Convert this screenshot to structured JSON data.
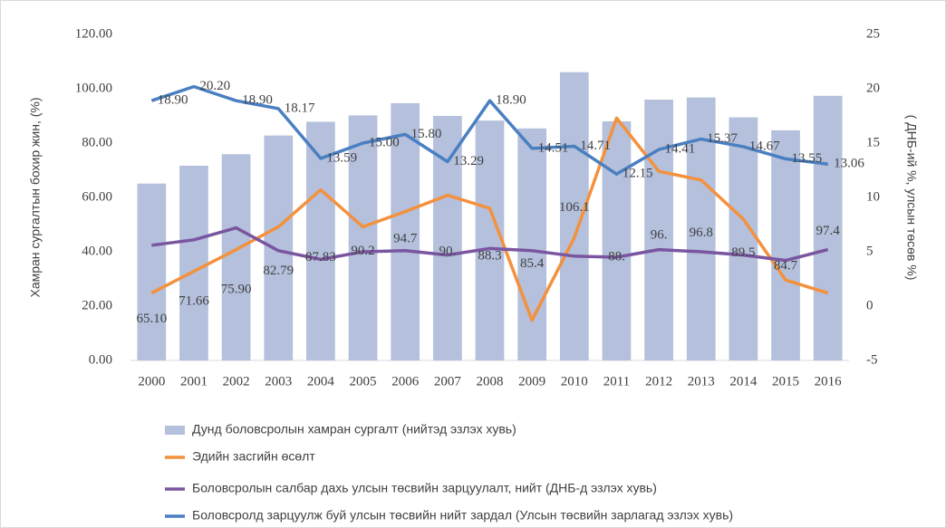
{
  "chart_data": {
    "type": "bar_line",
    "categories": [
      "2000",
      "2001",
      "2002",
      "2003",
      "2004",
      "2005",
      "2006",
      "2007",
      "2008",
      "2009",
      "2010",
      "2011",
      "2012",
      "2013",
      "2014",
      "2015",
      "2016"
    ],
    "y_label": "Хамран сургалтын бохир жин, (%)",
    "y2_label": "( ДНБ-ий %,  улсын төсөв %)",
    "ylim": [
      0,
      120
    ],
    "yticks": [
      {
        "value": 0,
        "label": "0.00"
      },
      {
        "value": 20,
        "label": "20.00"
      },
      {
        "value": 40,
        "label": "40.00"
      },
      {
        "value": 60,
        "label": "60.00"
      },
      {
        "value": 80,
        "label": "80.00"
      },
      {
        "value": 100,
        "label": "100.00"
      },
      {
        "value": 120,
        "label": "120.00"
      }
    ],
    "y2lim": [
      -5,
      25
    ],
    "y2ticks": [
      -5,
      0,
      5,
      10,
      15,
      20,
      25
    ],
    "series": [
      {
        "name": "Дунд боловсролын хамран сургалт (нийтэд эзлэх хувь)",
        "kind": "bar",
        "color": "#b4c0dc",
        "values": [
          65.1,
          71.66,
          75.9,
          82.79,
          87.83,
          90.2,
          94.7,
          90,
          88.3,
          85.4,
          106.1,
          88,
          96,
          96.8,
          89.5,
          84.7,
          97.4
        ],
        "value_labels": [
          "65.10",
          "71.66",
          "75.90",
          "82.79",
          "87.83",
          "90.2",
          "94.7",
          "90.",
          "88.3",
          "85.4",
          "106.1",
          "88.",
          "96.",
          "96.8",
          "89.5",
          "84.7",
          "97.4"
        ]
      },
      {
        "name": "Эдийн засгийн өсөлт",
        "kind": "line",
        "axis": "y2",
        "color": "#f4913d",
        "values": [
          1.2,
          3.2,
          5.2,
          7.3,
          10.7,
          7.3,
          8.7,
          10.2,
          9.0,
          -1.3,
          6.3,
          17.3,
          12.4,
          11.6,
          8.0,
          2.4,
          1.2
        ]
      },
      {
        "name": "Боловсролын салбар дахь улсын төсвийн зарцуулалт, нийт (ДНБ-д эзлэх хувь)",
        "kind": "line",
        "axis": "y2",
        "color": "#7a55a0",
        "values": [
          5.6,
          6.1,
          7.2,
          5.1,
          4.3,
          5.0,
          5.1,
          4.7,
          5.3,
          5.1,
          4.6,
          4.5,
          5.2,
          5.0,
          4.7,
          4.2,
          5.2
        ]
      },
      {
        "name": "Боловсролд зарцуулж буй улсын төсвийн нийт зардал (Улсын төсвийн зарлагад эзлэх  хувь)",
        "kind": "line",
        "axis": "y2",
        "color": "#4a7fc1",
        "values": [
          18.9,
          20.2,
          18.9,
          18.17,
          13.59,
          15.0,
          15.8,
          13.29,
          18.9,
          14.51,
          14.71,
          12.15,
          14.41,
          15.37,
          14.67,
          13.55,
          13.06
        ],
        "value_labels": [
          "18.90",
          "20.20",
          "18.90",
          "18.17",
          "13.59",
          "15.00",
          "15.80",
          "13.29",
          "18.90",
          "14.51",
          "14.71",
          "12.15",
          "14.41",
          "15.37",
          "14.67",
          "13.55",
          "13.06"
        ]
      }
    ]
  }
}
